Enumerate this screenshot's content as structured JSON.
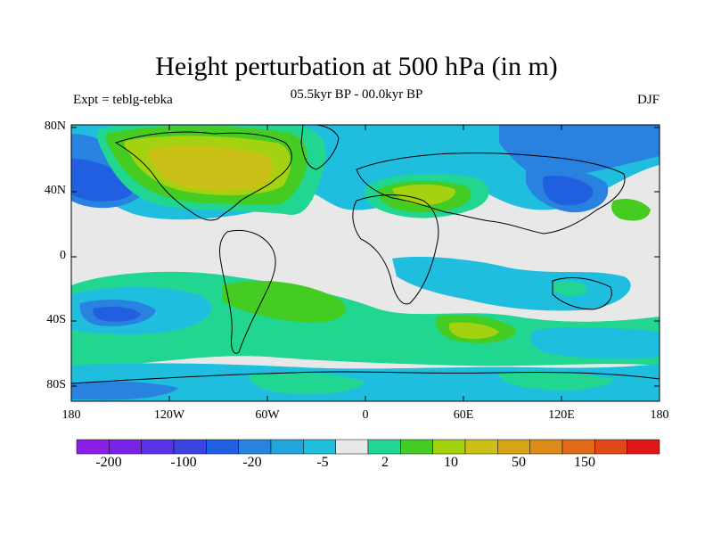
{
  "title": "Height perturbation at 500 hPa (in m)",
  "subtitle": "05.5kyr BP - 00.0kyr BP",
  "left_label": "Expt = teblg-tebka",
  "right_label": "DJF",
  "lat_labels": [
    "80N",
    "40N",
    "0",
    "40S",
    "80S"
  ],
  "lon_labels": [
    "180",
    "120W",
    "60W",
    "0",
    "60E",
    "120E",
    "180"
  ],
  "colorbar": {
    "colors": [
      "#8a1ee6",
      "#7a22e6",
      "#5a32e6",
      "#3a44e0",
      "#2060e0",
      "#2a82e0",
      "#22a4dc",
      "#20bede",
      "#e8e8e8",
      "#20d690",
      "#44cc22",
      "#a4d210",
      "#cac018",
      "#d6a418",
      "#dc8a18",
      "#e06a16",
      "#e04818",
      "#e01818"
    ],
    "labels": [
      "-200",
      "-100",
      "-20",
      "-5",
      "2",
      "10",
      "50",
      "150"
    ]
  },
  "colors": {
    "background": "#e8e8e8",
    "land_outline": "#000000"
  }
}
